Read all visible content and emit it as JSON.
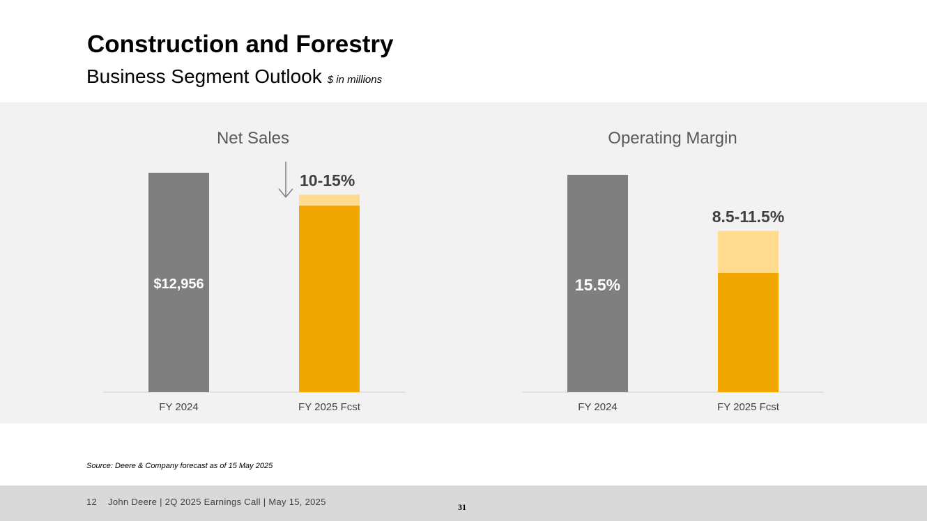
{
  "header": {
    "title": "Construction and Forestry",
    "subtitle": "Business Segment Outlook",
    "units": "$ in millions"
  },
  "chart_data": [
    {
      "type": "bar",
      "title": "Net Sales",
      "categories": [
        "FY 2024",
        "FY 2025 Fcst"
      ],
      "values": [
        12956,
        null
      ],
      "bar_labels": [
        "$12,956",
        ""
      ],
      "forecast_range_label": "10-15%",
      "forecast_direction": "down",
      "forecast_range_pct": [
        -15,
        -10
      ],
      "xlabel": "",
      "ylabel": ""
    },
    {
      "type": "bar",
      "title": "Operating Margin",
      "categories": [
        "FY 2024",
        "FY 2025 Fcst"
      ],
      "values": [
        15.5,
        null
      ],
      "bar_labels": [
        "15.5%",
        ""
      ],
      "forecast_range_label": "8.5-11.5%",
      "forecast_range_pct": [
        8.5,
        11.5
      ],
      "xlabel": "",
      "ylabel": ""
    }
  ],
  "colors": {
    "actual_bar": "#7f7f7f",
    "forecast_bar": "#f0a800",
    "forecast_range": "#ffdb8f",
    "panel_background": "#f2f2f2"
  },
  "icons": {
    "trend": "down-arrow-icon"
  },
  "source_note": "Source: Deere & Company forecast as of 15 May 2025",
  "footer": {
    "slide_number": "12",
    "text": "John Deere | 2Q 2025 Earnings Call | May 15, 2025",
    "page_number": "31"
  }
}
